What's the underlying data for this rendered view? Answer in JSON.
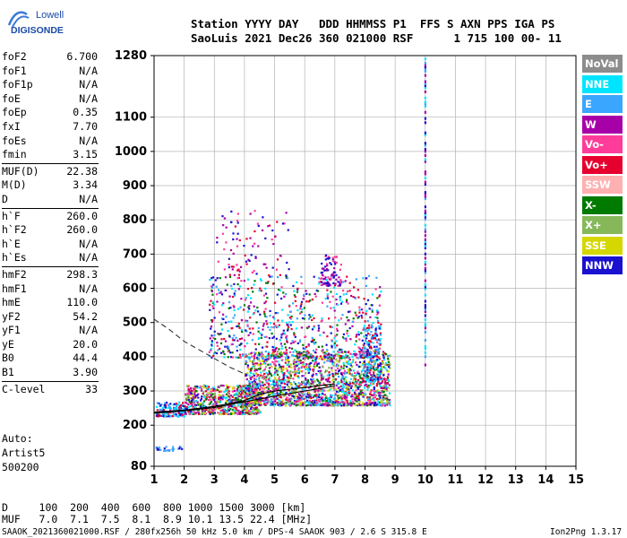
{
  "logo": {
    "line1": "Lowell",
    "line2": "DIGISONDE"
  },
  "header": {
    "line1": "Station YYYY DAY   DDD HHMMSS P1  FFS S AXN PPS IGA PS",
    "line2": "SaoLuis 2021 Dec26 360 021000 RSF      1 715 100 00- 11"
  },
  "params": [
    [
      {
        "label": "foF2",
        "value": "6.700"
      },
      {
        "label": "foF1",
        "value": "N/A"
      },
      {
        "label": "foF1p",
        "value": "N/A"
      },
      {
        "label": "foE",
        "value": "N/A"
      },
      {
        "label": "foEp",
        "value": "0.35"
      },
      {
        "label": "fxI",
        "value": "7.70"
      },
      {
        "label": "foEs",
        "value": "N/A"
      },
      {
        "label": "fmin",
        "value": "3.15"
      }
    ],
    [
      {
        "label": "MUF(D)",
        "value": "22.38"
      },
      {
        "label": "M(D)",
        "value": "3.34"
      },
      {
        "label": "D",
        "value": "N/A"
      }
    ],
    [
      {
        "label": "h`F",
        "value": "260.0"
      },
      {
        "label": "h`F2",
        "value": "260.0"
      },
      {
        "label": "h`E",
        "value": "N/A"
      },
      {
        "label": "h`Es",
        "value": "N/A"
      }
    ],
    [
      {
        "label": "hmF2",
        "value": "298.3"
      },
      {
        "label": "hmF1",
        "value": "N/A"
      },
      {
        "label": "hmE",
        "value": "110.0"
      },
      {
        "label": "yF2",
        "value": "54.2"
      },
      {
        "label": "yF1",
        "value": "N/A"
      },
      {
        "label": "yE",
        "value": "20.0"
      },
      {
        "label": "B0",
        "value": "44.4"
      },
      {
        "label": "B1",
        "value": "3.90"
      }
    ],
    [
      {
        "label": "C-level",
        "value": "33"
      }
    ]
  ],
  "auto": {
    "line1": "Auto:",
    "line2": "Artist5",
    "line3": "500200"
  },
  "legend": [
    {
      "label": "NoVal",
      "color": "#8c8c8c"
    },
    {
      "label": "NNE",
      "color": "#00e5ff"
    },
    {
      "label": "E",
      "color": "#3aa6ff"
    },
    {
      "label": "W",
      "color": "#a800a8"
    },
    {
      "label": "Vo-",
      "color": "#ff3c9a"
    },
    {
      "label": "Vo+",
      "color": "#e6002e"
    },
    {
      "label": "SSW",
      "color": "#ffb0b0"
    },
    {
      "label": "X-",
      "color": "#007a00"
    },
    {
      "label": "X+",
      "color": "#86b85a"
    },
    {
      "label": "SSE",
      "color": "#d6d600"
    },
    {
      "label": "NNW",
      "color": "#1a10d0"
    }
  ],
  "footer": {
    "d_line": "D     100  200  400  600  800 1000 1500 3000 [km]",
    "muf_line": "MUF   7.0  7.1  7.5  8.1  8.9 10.1 13.5 22.4 [MHz]",
    "info": "SAAOK_2021360021000.RSF / 280fx256h 50 kHz 5.0 km / DPS-4 SAAOK 903 / 2.6 S 315.8 E",
    "version": "Ion2Png 1.3.17"
  },
  "chart_data": {
    "type": "scatter",
    "xlim": [
      1,
      15
    ],
    "ylim": [
      80,
      1280
    ],
    "x_ticks": [
      "1",
      "2",
      "3",
      "4",
      "5",
      "6",
      "7",
      "8",
      "9",
      "10",
      "11",
      "12",
      "13",
      "14",
      "15"
    ],
    "y_ticks": [
      {
        "v": 80,
        "t": "80"
      },
      {
        "v": 200,
        "t": "200"
      },
      {
        "v": 300,
        "t": "300"
      },
      {
        "v": 400,
        "t": "400"
      },
      {
        "v": 500,
        "t": "500"
      },
      {
        "v": 600,
        "t": "600"
      },
      {
        "v": 700,
        "t": "700"
      },
      {
        "v": 800,
        "t": "800"
      },
      {
        "v": 900,
        "t": "900"
      },
      {
        "v": 1000,
        "t": "1000"
      },
      {
        "v": 1100,
        "t": "1100"
      },
      {
        "v": 1280,
        "t": "1280"
      }
    ],
    "grid": true,
    "clusters": [
      {
        "x": [
          1.05,
          2.0
        ],
        "y": [
          228,
          270
        ],
        "n": 160,
        "colors": [
          "#1a10d0",
          "#00e5ff",
          "#3aa6ff",
          "#e6002e"
        ]
      },
      {
        "x": [
          2.0,
          4.5
        ],
        "y": [
          235,
          320
        ],
        "n": 700,
        "colors": [
          "#e6002e",
          "#ff3c9a",
          "#a800a8",
          "#1a10d0",
          "#00e5ff",
          "#d6d600",
          "#86b85a",
          "#007a00"
        ]
      },
      {
        "x": [
          4.0,
          8.8
        ],
        "y": [
          260,
          420
        ],
        "n": 1800,
        "colors": [
          "#e6002e",
          "#ff3c9a",
          "#a800a8",
          "#1a10d0",
          "#3aa6ff",
          "#d6d600",
          "#007a00",
          "#86b85a",
          "#00e5ff"
        ]
      },
      {
        "x": [
          2.8,
          8.5
        ],
        "y": [
          400,
          640
        ],
        "n": 700,
        "colors": [
          "#a800a8",
          "#1a10d0",
          "#ff3c9a",
          "#e6002e",
          "#3aa6ff",
          "#00e5ff",
          "#007a00"
        ]
      },
      {
        "x": [
          6.5,
          7.2
        ],
        "y": [
          610,
          700
        ],
        "n": 90,
        "colors": [
          "#a800a8",
          "#ff3c9a",
          "#1a10d0"
        ]
      },
      {
        "x": [
          1.05,
          1.9
        ],
        "y": [
          128,
          140
        ],
        "n": 25,
        "colors": [
          "#1a10d0",
          "#3aa6ff"
        ]
      },
      {
        "x": [
          3.0,
          5.5
        ],
        "y": [
          640,
          830
        ],
        "n": 90,
        "colors": [
          "#a800a8",
          "#ff3c9a",
          "#1a10d0",
          "#e6002e"
        ]
      },
      {
        "x": [
          7.9,
          8.5
        ],
        "y": [
          330,
          500
        ],
        "n": 180,
        "colors": [
          "#3aa6ff",
          "#00e5ff",
          "#1a10d0",
          "#e6002e"
        ]
      }
    ],
    "column": {
      "x": 10.0,
      "y": [
        380,
        1275
      ],
      "colors": [
        "#1a10d0",
        "#a800a8",
        "#3aa6ff",
        "#00e5ff"
      ]
    },
    "curves": [
      {
        "style": "solid",
        "x": [
          1.0,
          2.0,
          3.0,
          4.0,
          5.0,
          6.0,
          6.7,
          7.0
        ],
        "y": [
          235,
          242,
          252,
          268,
          285,
          300,
          310,
          315
        ]
      },
      {
        "style": "solid",
        "x": [
          1.0,
          2.0,
          3.0,
          4.0,
          4.5,
          5.0,
          6.0,
          6.7,
          7.0
        ],
        "y": [
          238,
          244,
          255,
          272,
          290,
          300,
          310,
          318,
          320
        ]
      },
      {
        "style": "dashed",
        "x": [
          1.0,
          1.5,
          2.0,
          2.5,
          3.0,
          3.5,
          4.0
        ],
        "y": [
          510,
          480,
          445,
          420,
          395,
          370,
          350
        ]
      }
    ]
  }
}
